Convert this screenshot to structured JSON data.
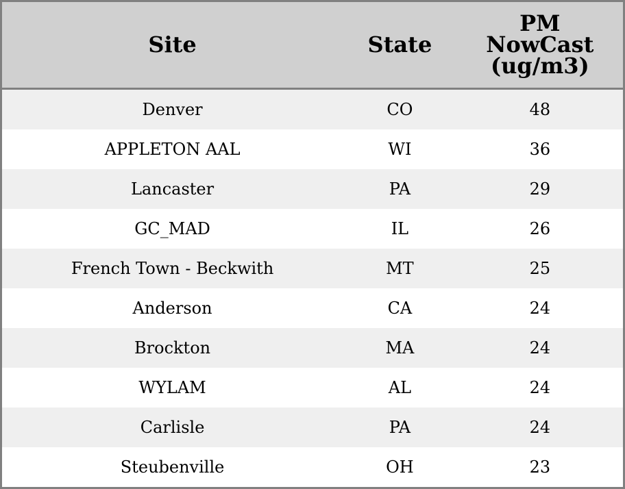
{
  "chart_data": {
    "type": "table",
    "columns": [
      "Site",
      "State",
      "PM NowCast (ug/m3)"
    ],
    "header_lines": [
      "Site",
      "State",
      [
        "PM",
        "NowCast",
        "(ug/m3)"
      ]
    ],
    "rows": [
      [
        "Denver",
        "CO",
        "48"
      ],
      [
        "APPLETON AAL",
        "WI",
        "36"
      ],
      [
        "Lancaster",
        "PA",
        "29"
      ],
      [
        "GC_MAD",
        "IL",
        "26"
      ],
      [
        "French Town - Beckwith",
        "MT",
        "25"
      ],
      [
        "Anderson",
        "CA",
        "24"
      ],
      [
        "Brockton",
        "MA",
        "24"
      ],
      [
        "WYLAM",
        "AL",
        "24"
      ],
      [
        "Carlisle",
        "PA",
        "24"
      ],
      [
        "Steubenville",
        "OH",
        "23"
      ]
    ],
    "colors": {
      "header_bg": "#d0d0d0",
      "stripe_bg": "#efefef",
      "border": "#808080"
    }
  }
}
